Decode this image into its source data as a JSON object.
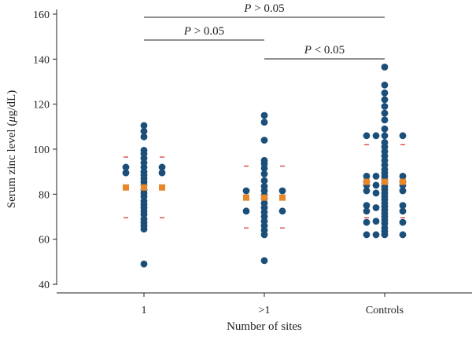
{
  "chart_data": {
    "type": "scatter",
    "xlabel": "Number of sites",
    "ylabel": "Serum zinc level (μg/dL)",
    "ylabel_parts": [
      "Serum zinc level (",
      "μ",
      "g/dL)"
    ],
    "ylim": [
      40,
      160
    ],
    "yticks": [
      40,
      60,
      80,
      100,
      120,
      140,
      160
    ],
    "categories": [
      "1",
      ">1",
      "Controls"
    ],
    "colors": {
      "points": "#1b4f7a",
      "mean": "#e8862a",
      "sd": "#d62728",
      "axis": "#222222"
    },
    "groups": [
      {
        "category": "1",
        "mean": 83,
        "sd_upper": 96.5,
        "sd_lower": 69.5,
        "points": [
          49,
          64.5,
          66,
          67.5,
          69,
          71,
          72.5,
          74,
          75.5,
          77,
          79,
          80.5,
          82,
          84,
          85.5,
          87,
          88.5,
          90,
          92,
          94,
          96,
          98,
          99.5,
          105.5,
          108,
          110.5
        ],
        "side_points": [
          89.5,
          92
        ]
      },
      {
        "category": ">1",
        "mean": 78.5,
        "sd_upper": 92.5,
        "sd_lower": 65,
        "points": [
          50.5,
          62,
          64,
          66,
          68,
          70,
          72,
          74,
          76,
          78,
          79.5,
          81.5,
          83.5,
          86,
          89,
          91.5,
          93.5,
          95,
          104,
          112,
          115
        ],
        "side_points": [
          72.5,
          81.5
        ]
      },
      {
        "category": "Controls",
        "mean": 85.5,
        "sd_upper": 102,
        "sd_lower": 69.5,
        "points": [
          62,
          63.5,
          65,
          67,
          68.5,
          70,
          71.5,
          73,
          74.5,
          76,
          77.5,
          79,
          80.5,
          82,
          83.5,
          85,
          86.5,
          88,
          89.5,
          91,
          93,
          95,
          97,
          99,
          101,
          103,
          106,
          109,
          113,
          116,
          119,
          122,
          125,
          128.5,
          136.5
        ],
        "inner_points": [
          62,
          68,
          74,
          80.5,
          84,
          88,
          106
        ],
        "side_points": [
          62,
          67.5,
          72.5,
          75,
          81.5,
          84,
          85.5,
          88,
          106
        ]
      }
    ],
    "comparisons": [
      {
        "from": "1",
        "to": "Controls",
        "label_parts": [
          "P",
          " > 0.05"
        ]
      },
      {
        "from": "1",
        "to": ">1",
        "label_parts": [
          "P",
          " > 0.05"
        ]
      },
      {
        "from": ">1",
        "to": "Controls",
        "label_parts": [
          "P",
          " < 0.05"
        ]
      }
    ]
  }
}
